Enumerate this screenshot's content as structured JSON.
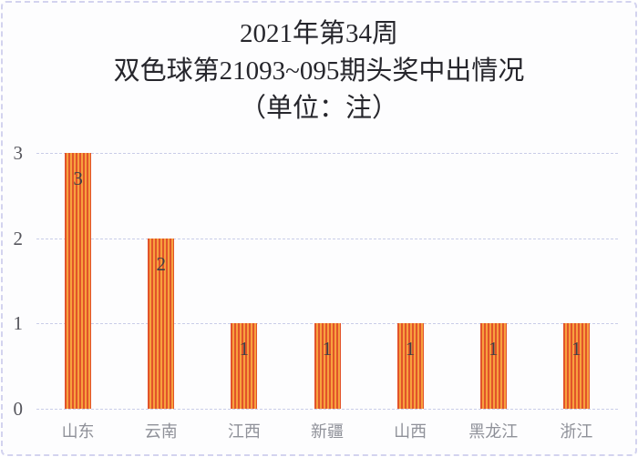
{
  "title": {
    "line1": "2021年第34周",
    "line2": "双色球第21093~095期头奖中出情况",
    "line3": "（单位：注）"
  },
  "chart_data": {
    "type": "bar",
    "title": "2021年第34周 双色球第21093~095期头奖中出情况（单位：注）",
    "unit_label": "注",
    "categories": [
      "山东",
      "云南",
      "江西",
      "新疆",
      "山西",
      "黑龙江",
      "浙江"
    ],
    "values": [
      3,
      2,
      1,
      1,
      1,
      1,
      1
    ],
    "value_labels": [
      "3",
      "2",
      "1",
      "1",
      "1",
      "1",
      "1"
    ],
    "xlabel": "",
    "ylabel": "",
    "ylim": [
      0,
      3
    ],
    "yticks": [
      0,
      1,
      2,
      3
    ],
    "grid": "horizontal-dashed",
    "legend": "none",
    "bar_style": "vertical-stripes"
  },
  "colors": {
    "bar_stripe_dark": "#e2532a",
    "bar_stripe_light": "#f7a13e",
    "gridline": "#c9cde8",
    "title_text": "#26262c",
    "ytick_text": "#55555c",
    "value_label_text": "#3f4046",
    "category_text": "#8f9199",
    "card_border": "#d3d3ef",
    "card_background": "#fdfdfe"
  }
}
